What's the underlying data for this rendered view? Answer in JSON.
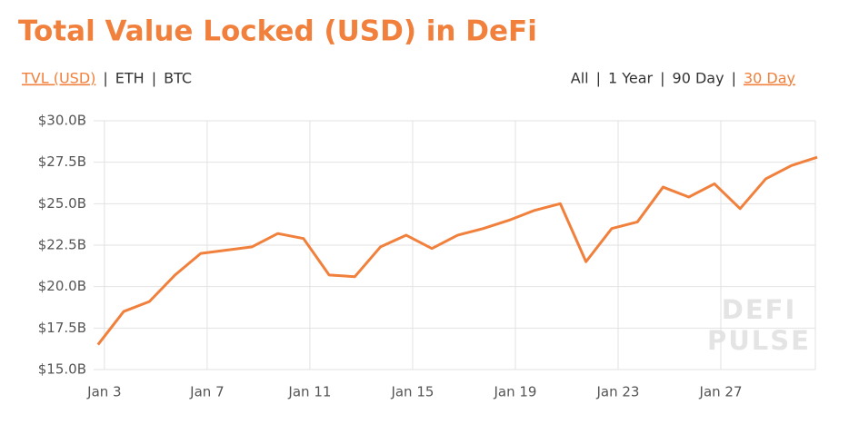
{
  "chart_data": {
    "type": "line",
    "title": "Total Value Locked (USD) in DeFi",
    "left_tabs": [
      "TVL (USD)",
      "ETH",
      "BTC"
    ],
    "right_tabs": [
      "All",
      "1 Year",
      "90 Day",
      "30 Day"
    ],
    "separator": "|",
    "active_left": 0,
    "active_right": 3,
    "watermark": [
      "DEFI",
      "PULSE"
    ],
    "x": [
      2.75,
      3.75,
      4.75,
      5.75,
      6.75,
      7.75,
      8.75,
      9.75,
      10.75,
      11.75,
      12.75,
      13.75,
      14.75,
      15.75,
      16.75,
      17.75,
      18.75,
      19.75,
      20.75,
      21.75,
      22.75,
      23.75,
      24.75,
      25.75,
      26.75,
      27.75,
      28.75,
      29.75,
      30.75
    ],
    "series": [
      {
        "name": "TVL (USD)",
        "color": "#f0803c",
        "values": [
          16.5,
          18.5,
          19.1,
          20.7,
          22.0,
          22.2,
          22.4,
          23.2,
          22.9,
          20.7,
          20.6,
          22.4,
          23.1,
          22.3,
          23.1,
          23.5,
          24.0,
          24.6,
          25.0,
          21.5,
          23.5,
          23.9,
          26.0,
          25.4,
          26.2,
          24.7,
          26.5,
          27.3,
          27.8
        ]
      }
    ],
    "xlim": [
      2.58,
      30.68
    ],
    "xticks": [
      {
        "value": 3,
        "label": "Jan 3"
      },
      {
        "value": 7,
        "label": "Jan 7"
      },
      {
        "value": 11,
        "label": "Jan 11"
      },
      {
        "value": 15,
        "label": "Jan 15"
      },
      {
        "value": 19,
        "label": "Jan 19"
      },
      {
        "value": 23,
        "label": "Jan 23"
      },
      {
        "value": 27,
        "label": "Jan 27"
      }
    ],
    "ylim": [
      15,
      30
    ],
    "yticks": [
      {
        "value": 15,
        "label": "$15.0B"
      },
      {
        "value": 17.5,
        "label": "$17.5B"
      },
      {
        "value": 20,
        "label": "$20.0B"
      },
      {
        "value": 22.5,
        "label": "$22.5B"
      },
      {
        "value": 25,
        "label": "$25.0B"
      },
      {
        "value": 27.5,
        "label": "$27.5B"
      },
      {
        "value": 30,
        "label": "$30.0B"
      }
    ],
    "grid": true
  }
}
